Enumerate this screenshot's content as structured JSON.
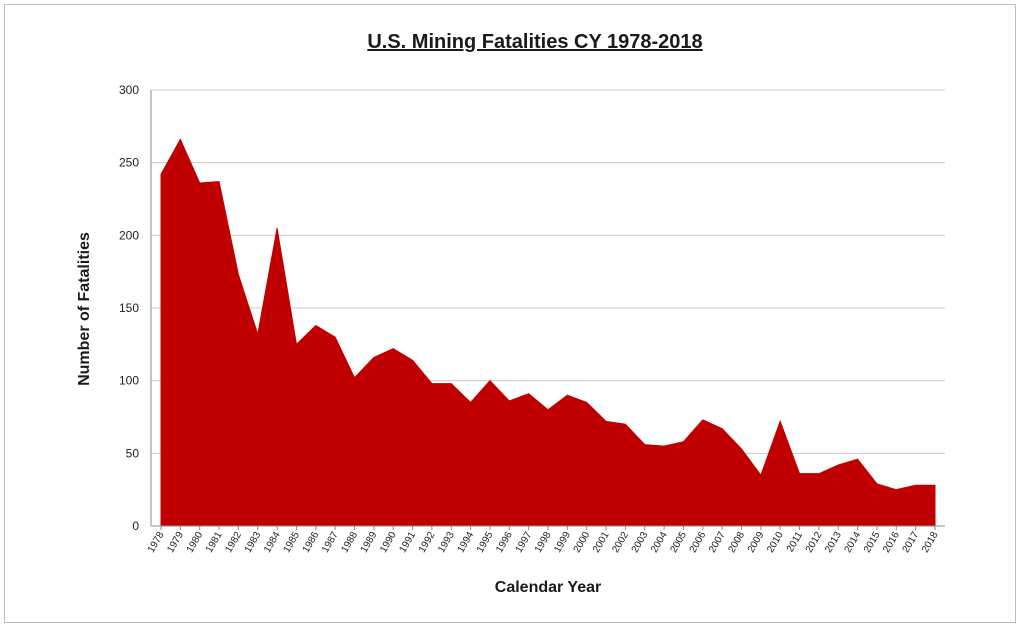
{
  "chart_data": {
    "type": "area",
    "title": "U.S. Mining  Fatalities CY 1978-2018",
    "xlabel": "Calendar Year",
    "ylabel": "Number of Fatalities",
    "ylim": [
      0,
      300
    ],
    "yticks": [
      "0",
      "50",
      "100",
      "150",
      "200",
      "250",
      "300"
    ],
    "grid": true,
    "legend": "none",
    "colors": {
      "fill": "#C00000",
      "grid": "#c8c8c8",
      "axis": "#8c8c8c"
    },
    "categories": [
      "1978",
      "1979",
      "1980",
      "1981",
      "1982",
      "1983",
      "1984",
      "1985",
      "1986",
      "1987",
      "1988",
      "1989",
      "1990",
      "1991",
      "1992",
      "1993",
      "1994",
      "1995",
      "1996",
      "1997",
      "1998",
      "1999",
      "2000",
      "2001",
      "2002",
      "2003",
      "2004",
      "2005",
      "2006",
      "2007",
      "2008",
      "2009",
      "2010",
      "2011",
      "2012",
      "2013",
      "2014",
      "2015",
      "2016",
      "2017",
      "2018"
    ],
    "series": [
      {
        "values": [
          242,
          266,
          236,
          237,
          173,
          132,
          205,
          125,
          138,
          130,
          102,
          116,
          122,
          114,
          98,
          98,
          85,
          100,
          86,
          91,
          80,
          90,
          85,
          72,
          70,
          56,
          55,
          58,
          73,
          67,
          53,
          35,
          72,
          36,
          36,
          42,
          46,
          29,
          25,
          28,
          28
        ]
      }
    ]
  }
}
